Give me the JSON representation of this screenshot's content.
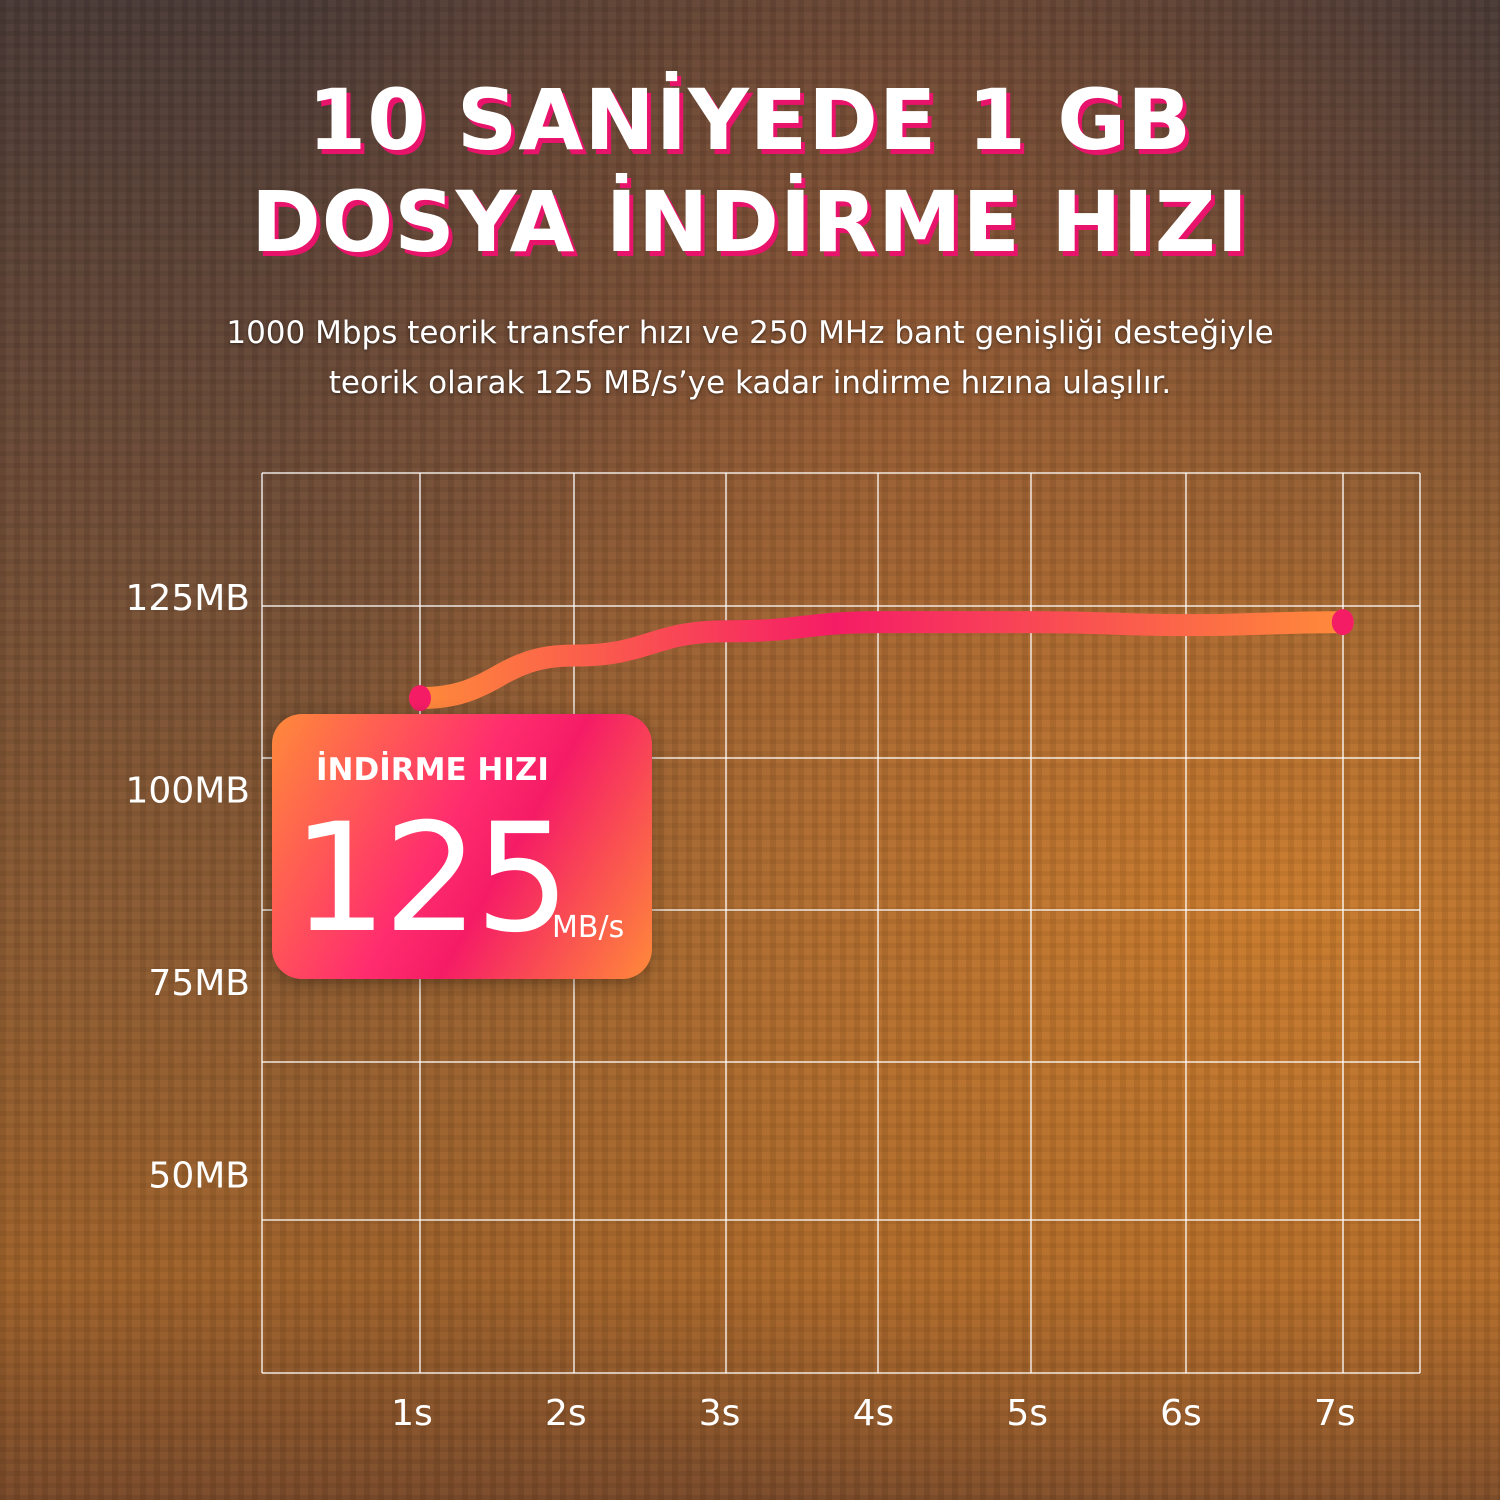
{
  "headline": {
    "line1": "10 SANİYEDE 1 GB",
    "line2": "DOSYA İNDİRME HIZI"
  },
  "subtitle": {
    "line1": "1000 Mbps teorik transfer hızı ve 250 MHz bant genişliği desteğiyle",
    "line2": "teorik olarak 125 MB/s’ye kadar indirme hızına ulaşılır."
  },
  "callout": {
    "label": "İNDİRME HIZI",
    "value": "125",
    "unit": "MB/s"
  },
  "colors": {
    "accent": "#f51c66",
    "accent2": "#ff8a3a",
    "grid": "#ffffff"
  },
  "chart_data": {
    "type": "line",
    "x": [
      1,
      2,
      3,
      4,
      5,
      6,
      7
    ],
    "x_tick_labels": [
      "1s",
      "2s",
      "3s",
      "4s",
      "5s",
      "6s",
      "7s"
    ],
    "y_ticks": [
      125,
      100,
      75,
      50
    ],
    "y_tick_labels": [
      "125MB",
      "100MB",
      "75MB",
      "50MB"
    ],
    "series": [
      {
        "values": [
          111,
          118,
          122,
          123.5,
          123.5,
          123,
          123.5
        ]
      }
    ],
    "ylim": [
      0,
      147
    ],
    "grid": true,
    "xlabel": "",
    "ylabel": "",
    "title": ""
  }
}
